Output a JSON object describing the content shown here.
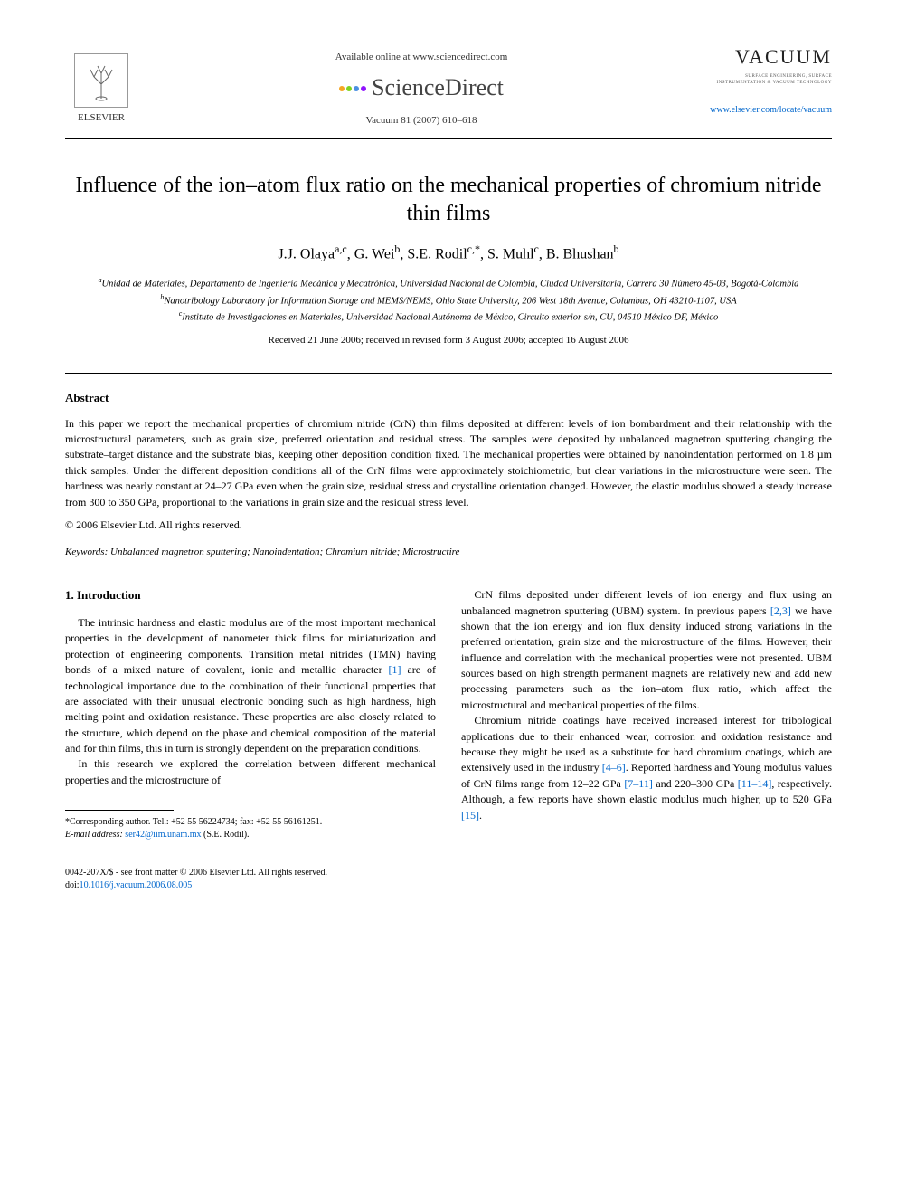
{
  "header": {
    "available_online": "Available online at www.sciencedirect.com",
    "sciencedirect": "ScienceDirect",
    "citation": "Vacuum 81 (2007) 610–618",
    "elsevier_label": "ELSEVIER",
    "journal_name": "VACUUM",
    "journal_subtitle": "SURFACE ENGINEERING, SURFACE INSTRUMENTATION & VACUUM TECHNOLOGY",
    "journal_link": "www.elsevier.com/locate/vacuum",
    "sd_dot_colors": [
      "#f5a623",
      "#7ed321",
      "#4a90e2",
      "#9013fe"
    ]
  },
  "title": "Influence of the ion–atom flux ratio on the mechanical properties of chromium nitride thin films",
  "authors_html": "J.J. Olaya<sup>a,c</sup>, G. Wei<sup>b</sup>, S.E. Rodil<sup>c,*</sup>, S. Muhl<sup>c</sup>, B. Bhushan<sup>b</sup>",
  "affiliations": {
    "a": "Unidad de Materiales, Departamento de Ingeniería Mecánica y Mecatrónica, Universidad Nacional de Colombia, Ciudad Universitaria, Carrera 30 Número 45-03, Bogotá-Colombia",
    "b": "Nanotribology Laboratory for Information Storage and MEMS/NEMS, Ohio State University, 206 West 18th Avenue, Columbus, OH 43210-1107, USA",
    "c": "Instituto de Investigaciones en Materiales, Universidad Nacional Autónoma de México, Circuito exterior s/n, CU, 04510 México DF, México"
  },
  "dates": "Received 21 June 2006; received in revised form 3 August 2006; accepted 16 August 2006",
  "abstract": {
    "heading": "Abstract",
    "body": "In this paper we report the mechanical properties of chromium nitride (CrN) thin films deposited at different levels of ion bombardment and their relationship with the microstructural parameters, such as grain size, preferred orientation and residual stress. The samples were deposited by unbalanced magnetron sputtering changing the substrate–target distance and the substrate bias, keeping other deposition condition fixed. The mechanical properties were obtained by nanoindentation performed on 1.8 µm thick samples. Under the different deposition conditions all of the CrN films were approximately stoichiometric, but clear variations in the microstructure were seen. The hardness was nearly constant at 24–27 GPa even when the grain size, residual stress and crystalline orientation changed. However, the elastic modulus showed a steady increase from 300 to 350 GPa, proportional to the variations in grain size and the residual stress level.",
    "copyright": "© 2006 Elsevier Ltd. All rights reserved."
  },
  "keywords": {
    "label": "Keywords:",
    "list": "Unbalanced magnetron sputtering; Nanoindentation; Chromium nitride; Microstructire"
  },
  "section1": {
    "heading": "1. Introduction",
    "left_p1": "The intrinsic hardness and elastic modulus are of the most important mechanical properties in the development of nanometer thick films for miniaturization and protection of engineering components. Transition metal nitrides (TMN) having bonds of a mixed nature of covalent, ionic and metallic character [1] are of technological importance due to the combination of their functional properties that are associated with their unusual electronic bonding such as high hardness, high melting point and oxidation resistance. These properties are also closely related to the structure, which depend on the phase and chemical composition of the material and for thin films, this in turn is strongly dependent on the preparation conditions.",
    "left_p2": "In this research we explored the correlation between different mechanical properties and the microstructure of",
    "right_p1": "CrN films deposited under different levels of ion energy and flux using an unbalanced magnetron sputtering (UBM) system. In previous papers [2,3] we have shown that the ion energy and ion flux density induced strong variations in the preferred orientation, grain size and the microstructure of the films. However, their influence and correlation with the mechanical properties were not presented. UBM sources based on high strength permanent magnets are relatively new and add new processing parameters such as the ion–atom flux ratio, which affect the microstructural and mechanical properties of the films.",
    "right_p2": "Chromium nitride coatings have received increased interest for tribological applications due to their enhanced wear, corrosion and oxidation resistance and because they might be used as a substitute for hard chromium coatings, which are extensively used in the industry [4–6]. Reported hardness and Young modulus values of CrN films range from 12–22 GPa [7–11] and 220–300 GPa [11–14], respectively. Although, a few reports have shown elastic modulus much higher, up to 520 GPa [15]."
  },
  "footnote": {
    "corresponding": "*Corresponding author. Tel.: +52 55 56224734; fax: +52 55 56161251.",
    "email_label": "E-mail address:",
    "email": "ser42@iim.unam.mx",
    "email_name": "(S.E. Rodil)."
  },
  "footer": {
    "line1": "0042-207X/$ - see front matter © 2006 Elsevier Ltd. All rights reserved.",
    "doi_label": "doi:",
    "doi": "10.1016/j.vacuum.2006.08.005"
  },
  "refs": {
    "r1": "[1]",
    "r23": "[2,3]",
    "r46": "[4–6]",
    "r711": "[7–11]",
    "r1114": "[11–14]",
    "r15": "[15]"
  },
  "colors": {
    "link": "#0066cc",
    "text": "#000000",
    "bg": "#ffffff"
  }
}
